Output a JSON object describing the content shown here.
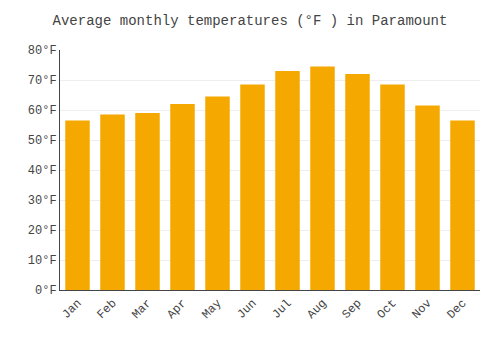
{
  "chart_data": {
    "type": "bar",
    "title": "Average monthly temperatures (°F ) in Paramount",
    "categories": [
      "Jan",
      "Feb",
      "Mar",
      "Apr",
      "May",
      "Jun",
      "Jul",
      "Aug",
      "Sep",
      "Oct",
      "Nov",
      "Dec"
    ],
    "values": [
      56.5,
      58.5,
      59.0,
      62.0,
      64.5,
      68.5,
      73.0,
      74.5,
      72.0,
      68.5,
      61.5,
      56.5
    ],
    "color": "#F5A800",
    "ylim": [
      0,
      80
    ],
    "yticks": [
      {
        "value": 0,
        "label": "0°F"
      },
      {
        "value": 10,
        "label": "10°F"
      },
      {
        "value": 20,
        "label": "20°F"
      },
      {
        "value": 30,
        "label": "30°F"
      },
      {
        "value": 40,
        "label": "40°F"
      },
      {
        "value": 50,
        "label": "50°F"
      },
      {
        "value": 60,
        "label": "60°F"
      },
      {
        "value": 70,
        "label": "70°F"
      },
      {
        "value": 80,
        "label": "80°F"
      }
    ],
    "grid": true
  }
}
